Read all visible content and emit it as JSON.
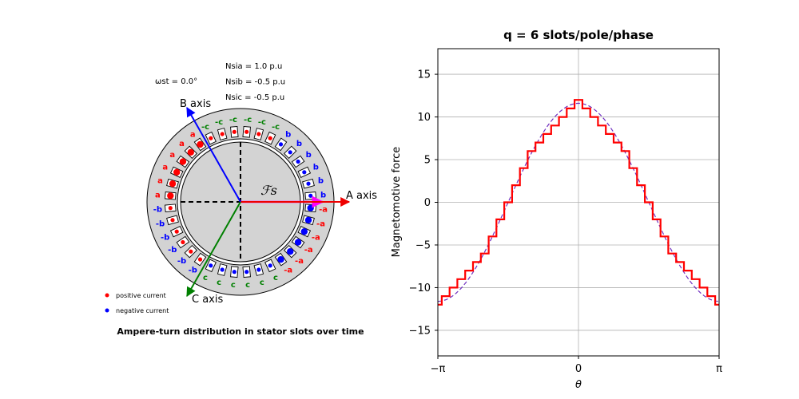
{
  "left_panel": {
    "time_label": "ωst = 0.0°",
    "currents": [
      {
        "label": "Nsia",
        "value": "1.0 p.u"
      },
      {
        "label": "Nsib",
        "value": "-0.5 p.u"
      },
      {
        "label": "Nsic",
        "value": "-0.5 p.u"
      }
    ],
    "axes": {
      "a": {
        "label": "A axis",
        "angle_deg": 0,
        "color": "#ee0000"
      },
      "b": {
        "label": "B axis",
        "angle_deg": 120,
        "color": "#0000ff"
      },
      "c": {
        "label": "C axis",
        "angle_deg": 240,
        "color": "#008000"
      }
    },
    "rotor_symbol": "ℱs",
    "legend": {
      "positive": "positive current",
      "negative": "negative current"
    },
    "caption": "Ampere-turn distribution in stator slots over time",
    "slot_count": 36,
    "slot_labels": [
      "b",
      "b",
      "b",
      "b",
      "b",
      "b",
      "-c",
      "-c",
      "-c",
      "-c",
      "-c",
      "-c",
      "a",
      "a",
      "a",
      "a",
      "a",
      "a",
      "-b",
      "-b",
      "-b",
      "-b",
      "-b",
      "-b",
      "c",
      "c",
      "c",
      "c",
      "c",
      "c",
      "-a",
      "-a",
      "-a",
      "-a",
      "-a",
      "-a"
    ],
    "colors": {
      "positive": "#ff0000",
      "negative": "#0000ff",
      "a": "#ff0000",
      "b": "#0000ff",
      "c": "#008000",
      "field": "#ff00ff"
    }
  },
  "chart_data": {
    "type": "line",
    "title": "q = 6 slots/pole/phase",
    "xlabel": "θ",
    "ylabel": "Magnetomotive force",
    "xlim": [
      -3.14159,
      3.14159
    ],
    "ylim": [
      -18,
      18
    ],
    "xticks": [
      -3.14159,
      0,
      3.14159
    ],
    "xtick_labels": [
      "−π",
      "0",
      "π"
    ],
    "yticks": [
      -15,
      -10,
      -5,
      0,
      5,
      10,
      15
    ],
    "ytick_labels": [
      "−15",
      "−10",
      "−5",
      "0",
      "5",
      "10",
      "15"
    ],
    "grid": true,
    "series": [
      {
        "style": "step",
        "color": "#ff0000",
        "x": [
          -3.1416,
          -3.0543,
          -2.8798,
          -2.7053,
          -2.5307,
          -2.3562,
          -2.1817,
          -2.0071,
          -1.8326,
          -1.6581,
          -1.4835,
          -1.309,
          -1.1345,
          -0.9599,
          -0.7854,
          -0.6109,
          -0.4363,
          -0.2618,
          -0.0873,
          0.0873,
          0.2618,
          0.4363,
          0.6109,
          0.7854,
          0.9599,
          1.1345,
          1.309,
          1.4835,
          1.6581,
          1.8326,
          2.0071,
          2.1817,
          2.3562,
          2.5307,
          2.7053,
          2.8798,
          3.0543,
          3.1416
        ],
        "y": [
          -12,
          -11,
          -10,
          -9,
          -8,
          -7,
          -6,
          -4,
          -2,
          0,
          2,
          4,
          6,
          7,
          8,
          9,
          10,
          11,
          12,
          11,
          10,
          9,
          8,
          7,
          6,
          4,
          2,
          0,
          -2,
          -4,
          -6,
          -7,
          -8,
          -9,
          -10,
          -11,
          -12,
          -12
        ]
      },
      {
        "style": "dashed",
        "color": "#7030c0",
        "function": "fundamental cosine",
        "amplitude": 11.6
      }
    ]
  }
}
